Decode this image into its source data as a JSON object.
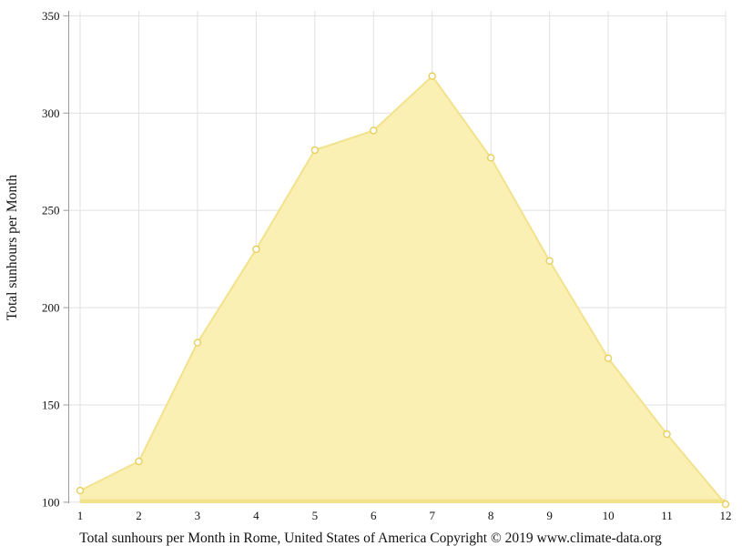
{
  "chart_data": {
    "type": "area",
    "x": [
      1,
      2,
      3,
      4,
      5,
      6,
      7,
      8,
      9,
      10,
      11,
      12
    ],
    "values": [
      106,
      121,
      182,
      230,
      281,
      291,
      319,
      277,
      224,
      174,
      135,
      99
    ],
    "title": "",
    "xlabel": "Total sunhours per Month in Rome, United States of America Copyright © 2019 www.climate-data.org",
    "ylabel": "Total sunhours per Month",
    "ylim": [
      99.5,
      352.5
    ],
    "yticks": [
      100,
      150,
      200,
      250,
      300,
      350
    ],
    "grid": true,
    "legend": "none",
    "colors": {
      "fill": "#FAF0B4",
      "line": "#F2E28C",
      "marker_fill": "#FFFFFF",
      "marker_stroke": "#E8CE5B",
      "grid": "#E0E0E0",
      "axis": "#9A9A9A",
      "text": "#111111",
      "background": "#FFFFFF"
    }
  }
}
